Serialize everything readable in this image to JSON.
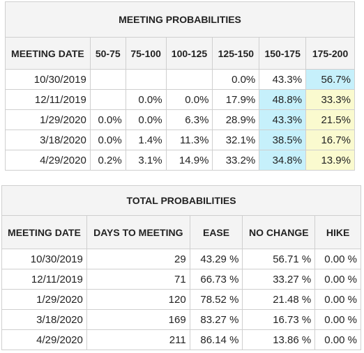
{
  "meeting_probabilities": {
    "title": "MEETING PROBABILITIES",
    "headers": [
      "MEETING DATE",
      "50-75",
      "75-100",
      "100-125",
      "125-150",
      "150-175",
      "175-200"
    ],
    "rows": [
      {
        "date": "10/30/2019",
        "cells": [
          "",
          "",
          "",
          "0.0%",
          "43.3%",
          "56.7%"
        ]
      },
      {
        "date": "12/11/2019",
        "cells": [
          "",
          "0.0%",
          "0.0%",
          "17.9%",
          "48.8%",
          "33.3%"
        ]
      },
      {
        "date": "1/29/2020",
        "cells": [
          "0.0%",
          "0.0%",
          "6.3%",
          "28.9%",
          "43.3%",
          "21.5%"
        ]
      },
      {
        "date": "3/18/2020",
        "cells": [
          "0.0%",
          "1.4%",
          "11.3%",
          "32.1%",
          "38.5%",
          "16.7%"
        ]
      },
      {
        "date": "4/29/2020",
        "cells": [
          "0.2%",
          "3.1%",
          "14.9%",
          "33.2%",
          "34.8%",
          "13.9%"
        ]
      }
    ],
    "highlight_colors": {
      "blue": "#c6f0fb",
      "yellow": "#fafacf"
    }
  },
  "total_probabilities": {
    "title": "TOTAL PROBABILITIES",
    "headers": [
      "MEETING DATE",
      "DAYS TO MEETING",
      "EASE",
      "NO CHANGE",
      "HIKE"
    ],
    "rows": [
      {
        "date": "10/30/2019",
        "days": "29",
        "ease": "43.29 %",
        "no_change": "56.71 %",
        "hike": "0.00 %"
      },
      {
        "date": "12/11/2019",
        "days": "71",
        "ease": "66.73 %",
        "no_change": "33.27 %",
        "hike": "0.00 %"
      },
      {
        "date": "1/29/2020",
        "days": "120",
        "ease": "78.52 %",
        "no_change": "21.48 %",
        "hike": "0.00 %"
      },
      {
        "date": "3/18/2020",
        "days": "169",
        "ease": "83.27 %",
        "no_change": "16.73 %",
        "hike": "0.00 %"
      },
      {
        "date": "4/29/2020",
        "days": "211",
        "ease": "86.14 %",
        "no_change": "13.86 %",
        "hike": "0.00 %"
      }
    ]
  }
}
